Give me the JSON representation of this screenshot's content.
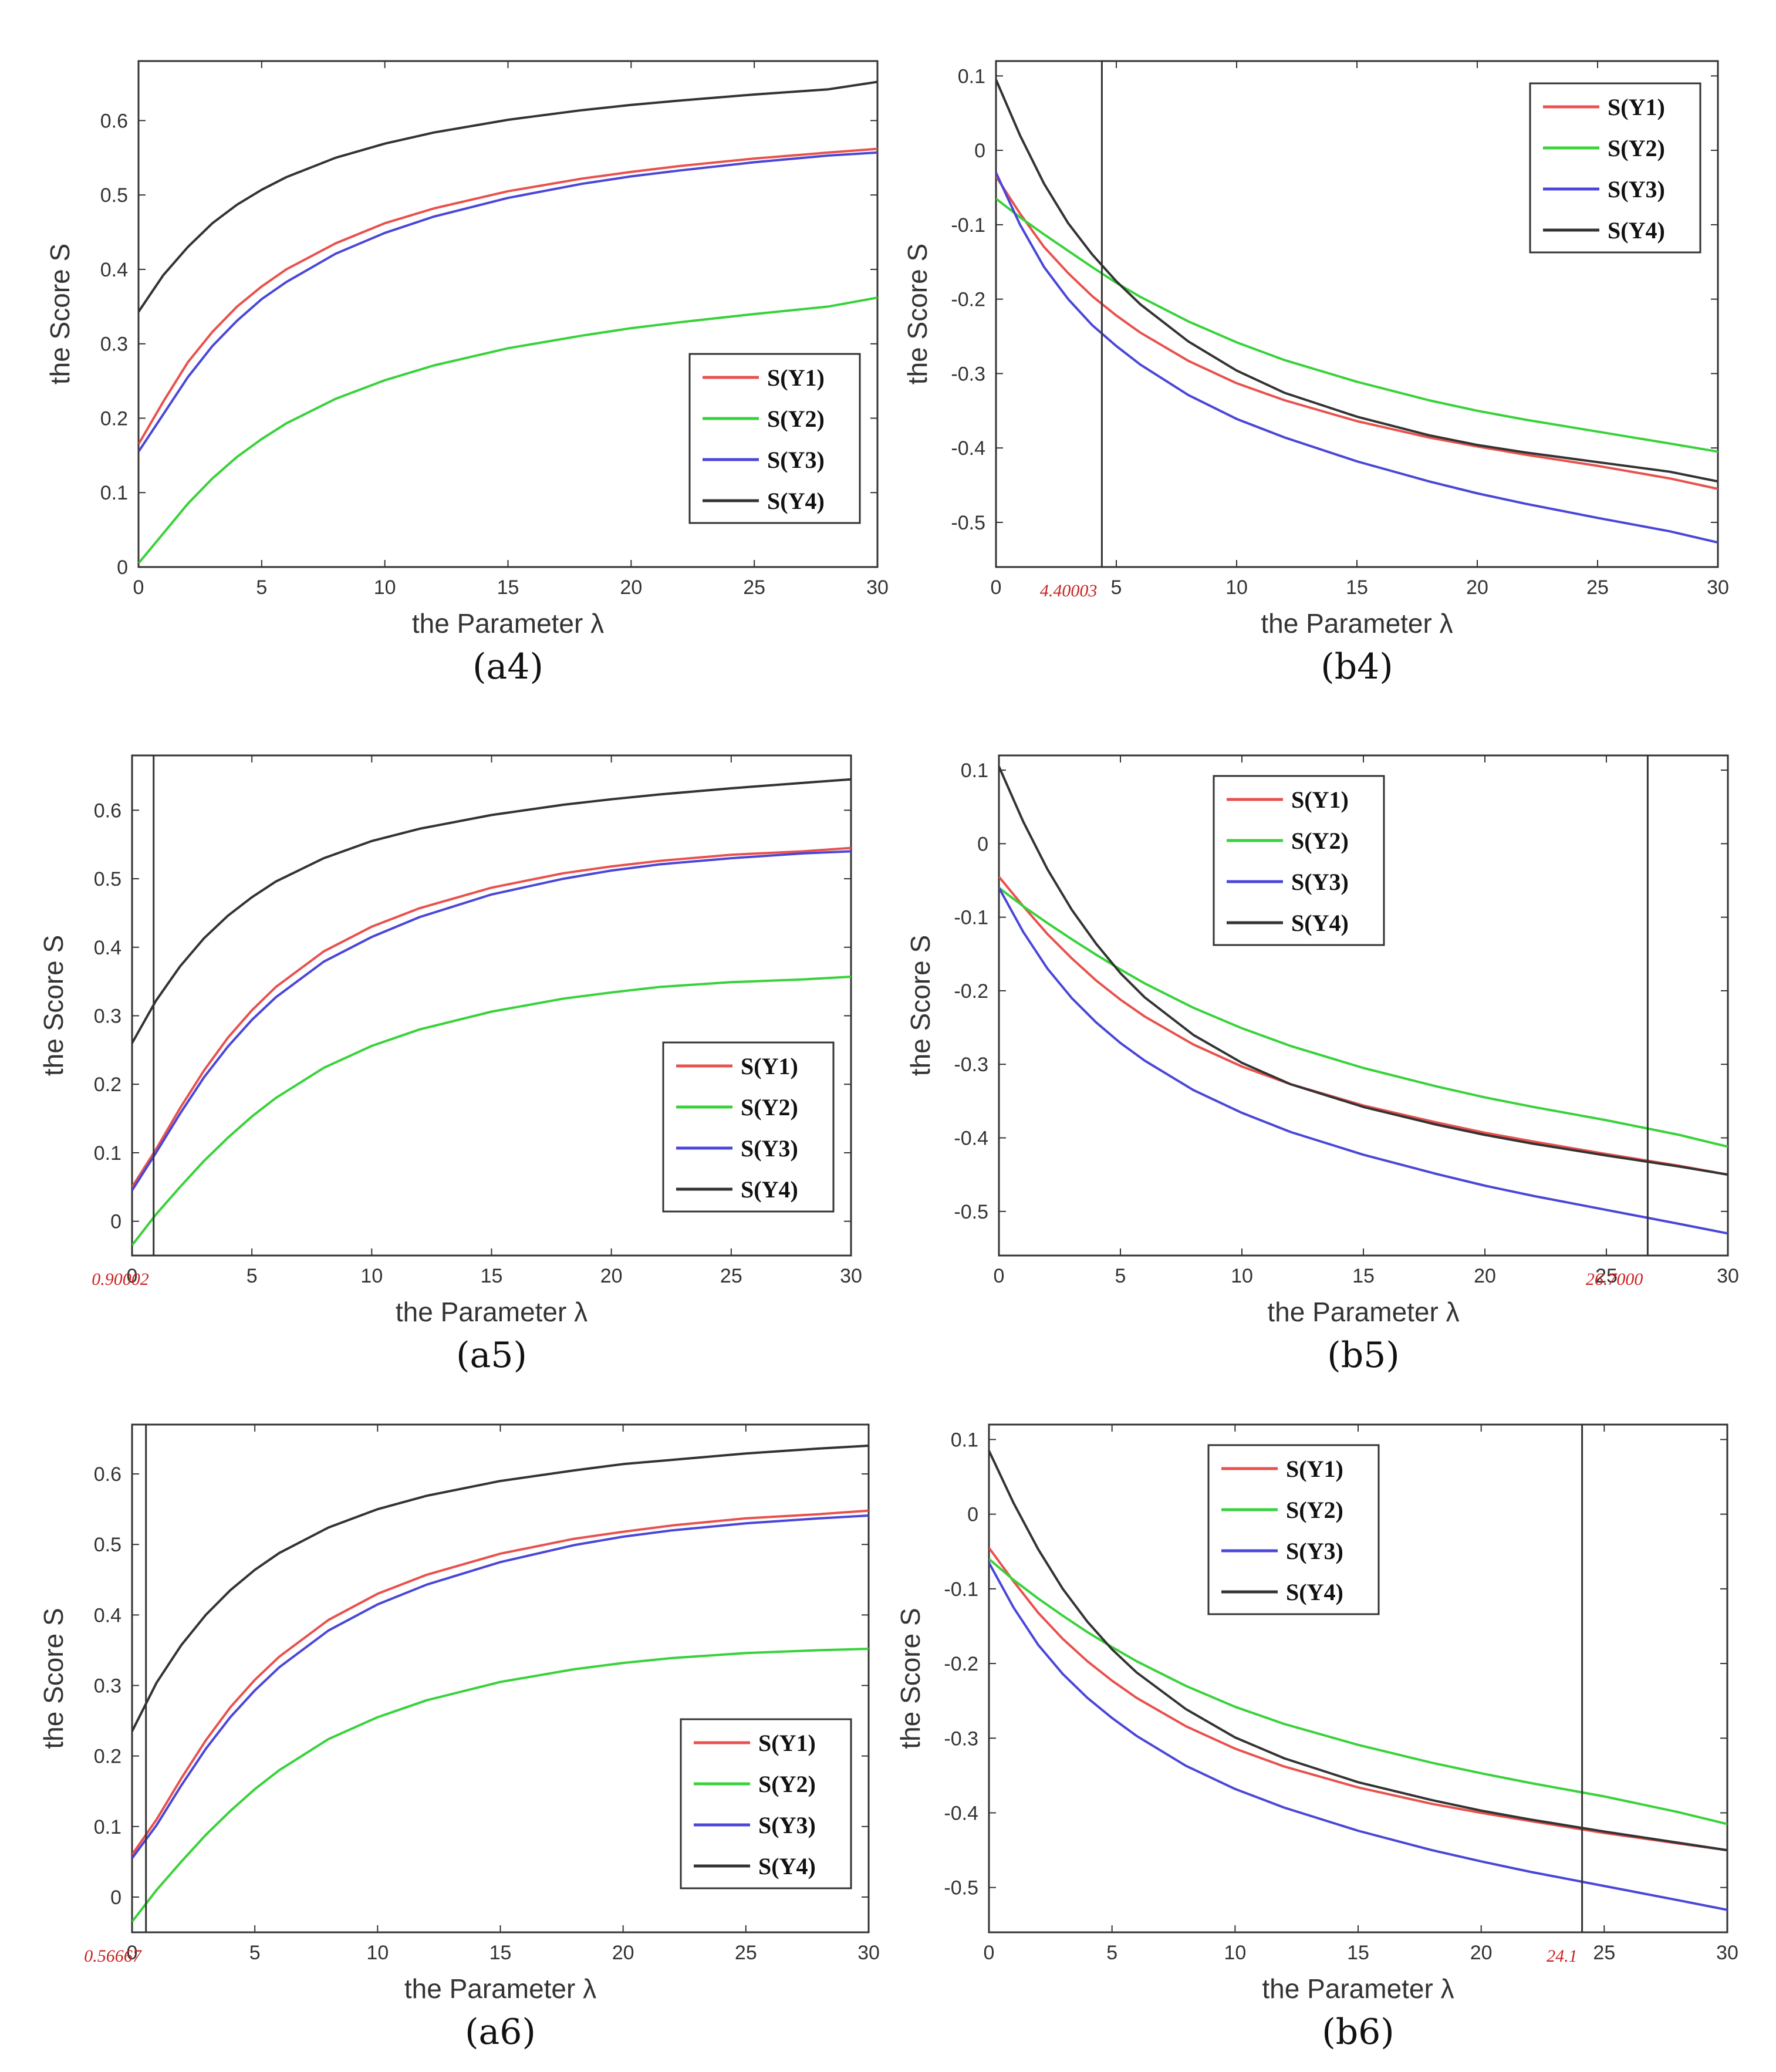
{
  "colors": {
    "Y1": "#e8514d",
    "Y2": "#38d23a",
    "Y3": "#4a46d8",
    "Y4": "#333333",
    "marker": "#cc2222"
  },
  "chart_data": [
    {
      "id": "a4",
      "type": "line",
      "caption": "(a4)",
      "xlabel": "the Parameter λ",
      "ylabel": "the Score S",
      "xlim": [
        0,
        30
      ],
      "ylim": [
        0,
        0.68
      ],
      "xticks": [
        0,
        5,
        10,
        15,
        20,
        25,
        30
      ],
      "xtick_labels": [
        "0",
        "5",
        "10",
        "15",
        "20",
        "25",
        "30"
      ],
      "yticks": [
        0,
        0.1,
        0.2,
        0.3,
        0.4,
        0.5,
        0.6
      ],
      "ytick_labels": [
        "0",
        "0.1",
        "0.2",
        "0.3",
        "0.4",
        "0.5",
        "0.6"
      ],
      "legend_position": "lower-right",
      "marker": null,
      "x": [
        0,
        1,
        2,
        3,
        4,
        5,
        6,
        8,
        10,
        12,
        15,
        18,
        20,
        22,
        25,
        28,
        30
      ],
      "series": [
        {
          "name": "S(Y1)",
          "key": "Y1",
          "values": [
            0.165,
            0.222,
            0.275,
            0.316,
            0.35,
            0.377,
            0.4,
            0.435,
            0.462,
            0.482,
            0.505,
            0.522,
            0.531,
            0.539,
            0.549,
            0.557,
            0.562
          ]
        },
        {
          "name": "S(Y2)",
          "key": "Y2",
          "values": [
            0.005,
            0.045,
            0.085,
            0.119,
            0.148,
            0.172,
            0.193,
            0.226,
            0.251,
            0.271,
            0.294,
            0.311,
            0.321,
            0.329,
            0.34,
            0.35,
            0.362
          ]
        },
        {
          "name": "S(Y3)",
          "key": "Y3",
          "values": [
            0.155,
            0.205,
            0.255,
            0.297,
            0.331,
            0.36,
            0.383,
            0.421,
            0.449,
            0.471,
            0.496,
            0.515,
            0.525,
            0.533,
            0.544,
            0.553,
            0.557
          ]
        },
        {
          "name": "S(Y4)",
          "key": "Y4",
          "values": [
            0.343,
            0.392,
            0.43,
            0.462,
            0.487,
            0.507,
            0.524,
            0.55,
            0.569,
            0.584,
            0.601,
            0.614,
            0.621,
            0.627,
            0.635,
            0.642,
            0.652
          ]
        }
      ]
    },
    {
      "id": "b4",
      "type": "line",
      "caption": "(b4)",
      "xlabel": "the Parameter λ",
      "ylabel": "the Score S",
      "xlim": [
        0,
        30
      ],
      "ylim": [
        -0.56,
        0.12
      ],
      "xticks": [
        0,
        5,
        10,
        15,
        20,
        25,
        30
      ],
      "xtick_labels": [
        "0",
        "5",
        "10",
        "15",
        "20",
        "25",
        "30"
      ],
      "yticks": [
        0.1,
        0,
        -0.1,
        -0.2,
        -0.3,
        -0.4,
        -0.5
      ],
      "ytick_labels": [
        "0.1",
        "0",
        "-0.1",
        "-0.2",
        "-0.3",
        "-0.4",
        "-0.5"
      ],
      "legend_position": "top-right",
      "marker": {
        "x": 4.40003,
        "label": "4.40003"
      },
      "x": [
        0,
        1,
        2,
        3,
        4,
        5,
        6,
        8,
        10,
        12,
        15,
        18,
        20,
        22,
        25,
        28,
        30
      ],
      "series": [
        {
          "name": "S(Y1)",
          "key": "Y1",
          "values": [
            -0.035,
            -0.085,
            -0.13,
            -0.165,
            -0.196,
            -0.222,
            -0.245,
            -0.283,
            -0.313,
            -0.336,
            -0.364,
            -0.386,
            -0.398,
            -0.409,
            -0.424,
            -0.441,
            -0.455
          ]
        },
        {
          "name": "S(Y2)",
          "key": "Y2",
          "values": [
            -0.065,
            -0.09,
            -0.113,
            -0.135,
            -0.157,
            -0.178,
            -0.197,
            -0.23,
            -0.258,
            -0.282,
            -0.311,
            -0.336,
            -0.35,
            -0.362,
            -0.378,
            -0.394,
            -0.405
          ]
        },
        {
          "name": "S(Y3)",
          "key": "Y3",
          "values": [
            -0.03,
            -0.1,
            -0.157,
            -0.2,
            -0.235,
            -0.263,
            -0.288,
            -0.329,
            -0.361,
            -0.386,
            -0.418,
            -0.445,
            -0.461,
            -0.475,
            -0.494,
            -0.512,
            -0.527
          ]
        },
        {
          "name": "S(Y4)",
          "key": "Y4",
          "values": [
            0.095,
            0.02,
            -0.045,
            -0.098,
            -0.14,
            -0.176,
            -0.207,
            -0.257,
            -0.296,
            -0.326,
            -0.358,
            -0.383,
            -0.396,
            -0.406,
            -0.419,
            -0.432,
            -0.445
          ]
        }
      ]
    },
    {
      "id": "a5",
      "type": "line",
      "caption": "(a5)",
      "xlabel": "the Parameter λ",
      "ylabel": "the Score S",
      "xlim": [
        0,
        30
      ],
      "ylim": [
        -0.05,
        0.68
      ],
      "xticks": [
        0,
        5,
        10,
        15,
        20,
        25,
        30
      ],
      "xtick_labels": [
        "0",
        "5",
        "10",
        "15",
        "20",
        "25",
        "30"
      ],
      "yticks": [
        0,
        0.1,
        0.2,
        0.3,
        0.4,
        0.5,
        0.6
      ],
      "ytick_labels": [
        "0",
        "0.1",
        "0.2",
        "0.3",
        "0.4",
        "0.5",
        "0.6"
      ],
      "legend_position": "lower-right",
      "marker": {
        "x": 0.90002,
        "label": "0.90002"
      },
      "x": [
        0,
        1,
        2,
        3,
        4,
        5,
        6,
        8,
        10,
        12,
        15,
        18,
        20,
        22,
        25,
        28,
        30
      ],
      "series": [
        {
          "name": "S(Y1)",
          "key": "Y1",
          "values": [
            0.05,
            0.105,
            0.165,
            0.22,
            0.268,
            0.308,
            0.342,
            0.394,
            0.43,
            0.457,
            0.487,
            0.508,
            0.518,
            0.526,
            0.535,
            0.54,
            0.545
          ]
        },
        {
          "name": "S(Y2)",
          "key": "Y2",
          "values": [
            -0.035,
            0.01,
            0.05,
            0.088,
            0.122,
            0.153,
            0.18,
            0.224,
            0.256,
            0.28,
            0.306,
            0.325,
            0.334,
            0.342,
            0.349,
            0.353,
            0.357
          ]
        },
        {
          "name": "S(Y3)",
          "key": "Y3",
          "values": [
            0.045,
            0.1,
            0.157,
            0.21,
            0.255,
            0.294,
            0.327,
            0.379,
            0.415,
            0.444,
            0.477,
            0.5,
            0.512,
            0.521,
            0.53,
            0.537,
            0.54
          ]
        },
        {
          "name": "S(Y4)",
          "key": "Y4",
          "values": [
            0.26,
            0.322,
            0.372,
            0.413,
            0.446,
            0.473,
            0.496,
            0.53,
            0.555,
            0.573,
            0.593,
            0.608,
            0.616,
            0.623,
            0.632,
            0.64,
            0.645
          ]
        }
      ]
    },
    {
      "id": "b5",
      "type": "line",
      "caption": "(b5)",
      "xlabel": "the Parameter λ",
      "ylabel": "the Score S",
      "xlim": [
        0,
        30
      ],
      "ylim": [
        -0.56,
        0.12
      ],
      "xticks": [
        0,
        5,
        10,
        15,
        20,
        25,
        30
      ],
      "xtick_labels": [
        "0",
        "5",
        "10",
        "15",
        "20",
        "25",
        "30"
      ],
      "yticks": [
        0.1,
        0,
        -0.1,
        -0.2,
        -0.3,
        -0.4,
        -0.5
      ],
      "ytick_labels": [
        "0.1",
        "0",
        "-0.1",
        "-0.2",
        "-0.3",
        "-0.4",
        "-0.5"
      ],
      "legend_position": "top-center",
      "marker": {
        "x": 26.7,
        "label": "26.7000"
      },
      "x": [
        0,
        1,
        2,
        3,
        4,
        5,
        6,
        8,
        10,
        12,
        15,
        18,
        20,
        22,
        25,
        28,
        30
      ],
      "series": [
        {
          "name": "S(Y1)",
          "key": "Y1",
          "values": [
            -0.045,
            -0.085,
            -0.123,
            -0.156,
            -0.186,
            -0.212,
            -0.235,
            -0.273,
            -0.303,
            -0.327,
            -0.356,
            -0.379,
            -0.393,
            -0.405,
            -0.422,
            -0.438,
            -0.45
          ]
        },
        {
          "name": "S(Y2)",
          "key": "Y2",
          "values": [
            -0.06,
            -0.085,
            -0.108,
            -0.13,
            -0.151,
            -0.171,
            -0.19,
            -0.223,
            -0.251,
            -0.275,
            -0.305,
            -0.33,
            -0.345,
            -0.358,
            -0.376,
            -0.396,
            -0.412
          ]
        },
        {
          "name": "S(Y3)",
          "key": "Y3",
          "values": [
            -0.06,
            -0.12,
            -0.17,
            -0.21,
            -0.243,
            -0.271,
            -0.295,
            -0.335,
            -0.366,
            -0.392,
            -0.423,
            -0.449,
            -0.465,
            -0.479,
            -0.498,
            -0.517,
            -0.53
          ]
        },
        {
          "name": "S(Y4)",
          "key": "Y4",
          "values": [
            0.105,
            0.03,
            -0.035,
            -0.09,
            -0.136,
            -0.176,
            -0.209,
            -0.26,
            -0.298,
            -0.327,
            -0.358,
            -0.382,
            -0.396,
            -0.408,
            -0.424,
            -0.439,
            -0.45
          ]
        }
      ]
    },
    {
      "id": "a6",
      "type": "line",
      "caption": "(a6)",
      "xlabel": "the Parameter λ",
      "ylabel": "the Score S",
      "xlim": [
        0,
        30
      ],
      "ylim": [
        -0.05,
        0.67
      ],
      "xticks": [
        0,
        5,
        10,
        15,
        20,
        25,
        30
      ],
      "xtick_labels": [
        "0",
        "5",
        "10",
        "15",
        "20",
        "25",
        "30"
      ],
      "yticks": [
        0,
        0.1,
        0.2,
        0.3,
        0.4,
        0.5,
        0.6
      ],
      "ytick_labels": [
        "0",
        "0.1",
        "0.2",
        "0.3",
        "0.4",
        "0.5",
        "0.6"
      ],
      "legend_position": "lower-right",
      "marker": {
        "x": 0.56667,
        "label": "0.56667"
      },
      "x": [
        0,
        1,
        2,
        3,
        4,
        5,
        6,
        8,
        10,
        12,
        15,
        18,
        20,
        22,
        25,
        28,
        30
      ],
      "series": [
        {
          "name": "S(Y1)",
          "key": "Y1",
          "values": [
            0.06,
            0.11,
            0.168,
            0.222,
            0.269,
            0.308,
            0.341,
            0.393,
            0.43,
            0.457,
            0.487,
            0.508,
            0.518,
            0.527,
            0.537,
            0.543,
            0.548
          ]
        },
        {
          "name": "S(Y2)",
          "key": "Y2",
          "values": [
            -0.035,
            0.01,
            0.05,
            0.088,
            0.122,
            0.153,
            0.18,
            0.224,
            0.255,
            0.279,
            0.305,
            0.323,
            0.332,
            0.339,
            0.346,
            0.35,
            0.352
          ]
        },
        {
          "name": "S(Y3)",
          "key": "Y3",
          "values": [
            0.055,
            0.102,
            0.158,
            0.21,
            0.255,
            0.293,
            0.326,
            0.378,
            0.415,
            0.443,
            0.475,
            0.499,
            0.511,
            0.52,
            0.53,
            0.537,
            0.541
          ]
        },
        {
          "name": "S(Y4)",
          "key": "Y4",
          "values": [
            0.235,
            0.304,
            0.357,
            0.4,
            0.435,
            0.464,
            0.488,
            0.524,
            0.55,
            0.569,
            0.59,
            0.605,
            0.614,
            0.62,
            0.629,
            0.636,
            0.64
          ]
        }
      ]
    },
    {
      "id": "b6",
      "type": "line",
      "caption": "(b6)",
      "xlabel": "the Parameter λ",
      "ylabel": "the Score S",
      "xlim": [
        0,
        30
      ],
      "ylim": [
        -0.56,
        0.12
      ],
      "xticks": [
        0,
        5,
        10,
        15,
        20,
        25,
        30
      ],
      "xtick_labels": [
        "0",
        "5",
        "10",
        "15",
        "20",
        "25",
        "30"
      ],
      "yticks": [
        0.1,
        0,
        -0.1,
        -0.2,
        -0.3,
        -0.4,
        -0.5
      ],
      "ytick_labels": [
        "0.1",
        "0",
        "-0.1",
        "-0.2",
        "-0.3",
        "-0.4",
        "-0.5"
      ],
      "legend_position": "top-center",
      "marker": {
        "x": 24.1,
        "label": "24.1"
      },
      "x": [
        0,
        1,
        2,
        3,
        4,
        5,
        6,
        8,
        10,
        12,
        15,
        18,
        20,
        22,
        25,
        28,
        30
      ],
      "series": [
        {
          "name": "S(Y1)",
          "key": "Y1",
          "values": [
            -0.045,
            -0.09,
            -0.132,
            -0.167,
            -0.197,
            -0.223,
            -0.246,
            -0.284,
            -0.314,
            -0.338,
            -0.366,
            -0.388,
            -0.4,
            -0.411,
            -0.427,
            -0.441,
            -0.45
          ]
        },
        {
          "name": "S(Y2)",
          "key": "Y2",
          "values": [
            -0.06,
            -0.088,
            -0.113,
            -0.136,
            -0.158,
            -0.178,
            -0.197,
            -0.23,
            -0.258,
            -0.281,
            -0.309,
            -0.333,
            -0.347,
            -0.36,
            -0.378,
            -0.399,
            -0.415
          ]
        },
        {
          "name": "S(Y3)",
          "key": "Y3",
          "values": [
            -0.065,
            -0.125,
            -0.175,
            -0.214,
            -0.246,
            -0.273,
            -0.297,
            -0.337,
            -0.368,
            -0.393,
            -0.424,
            -0.45,
            -0.465,
            -0.479,
            -0.498,
            -0.517,
            -0.53
          ]
        },
        {
          "name": "S(Y4)",
          "key": "Y4",
          "values": [
            0.085,
            0.015,
            -0.047,
            -0.1,
            -0.144,
            -0.181,
            -0.212,
            -0.261,
            -0.299,
            -0.327,
            -0.359,
            -0.383,
            -0.397,
            -0.409,
            -0.425,
            -0.44,
            -0.45
          ]
        }
      ]
    }
  ]
}
